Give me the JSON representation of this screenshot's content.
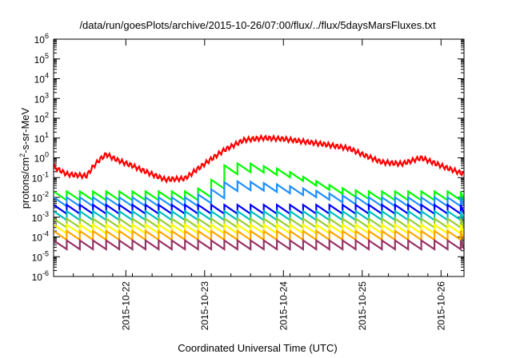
{
  "chart_data": {
    "type": "line",
    "title": "/data/run/goesPlots/archive/2015-10-26/07:00/flux/../flux/5daysMarsFluxes.txt",
    "xlabel": "Coordinated Universal Time (UTC)",
    "ylabel": {
      "main": "protons/cm",
      "sup": "2",
      "rest": "-s-sr-MeV"
    },
    "yscale": "log",
    "ylim_exp": [
      -6,
      6
    ],
    "y_ticks": [
      {
        "base": "10",
        "exp": "-6"
      },
      {
        "base": "10",
        "exp": "-5"
      },
      {
        "base": "10",
        "exp": "-4"
      },
      {
        "base": "10",
        "exp": "-3"
      },
      {
        "base": "10",
        "exp": "-2"
      },
      {
        "base": "10",
        "exp": "-1"
      },
      {
        "base": "10",
        "exp": "0"
      },
      {
        "base": "10",
        "exp": "1"
      },
      {
        "base": "10",
        "exp": "2"
      },
      {
        "base": "10",
        "exp": "3"
      },
      {
        "base": "10",
        "exp": "4"
      },
      {
        "base": "10",
        "exp": "5"
      },
      {
        "base": "10",
        "exp": "6"
      }
    ],
    "xlim": [
      "2015-10-21T02:00",
      "2015-10-26T07:00"
    ],
    "x_ticks": [
      "2015-10-22",
      "2015-10-23",
      "2015-10-24",
      "2015-10-25",
      "2015-10-26"
    ],
    "grid": false,
    "legend": "none",
    "colors": {
      "red": "#ff0000",
      "green": "#00ff00",
      "dodgerblue": "#1e90ff",
      "blue": "#0000ff",
      "cyan": "#00bfbf",
      "yellowgreen": "#9acd32",
      "yellow": "#ffff00",
      "orange": "#ffa500",
      "purple": "#993366"
    },
    "series": [
      {
        "color": "red",
        "x": [
          "2015-10-21T02:00",
          "2015-10-21T06:00",
          "2015-10-21T12:00",
          "2015-10-21T14:00",
          "2015-10-21T16:00",
          "2015-10-21T18:00",
          "2015-10-21T20:00",
          "2015-10-21T22:00",
          "2015-10-22T02:00",
          "2015-10-22T06:00",
          "2015-10-22T12:00",
          "2015-10-22T18:00",
          "2015-10-23T00:00",
          "2015-10-23T06:00",
          "2015-10-23T12:00",
          "2015-10-23T18:00",
          "2015-10-24T00:00",
          "2015-10-24T12:00",
          "2015-10-24T20:00",
          "2015-10-25T00:00",
          "2015-10-25T06:00",
          "2015-10-25T12:00",
          "2015-10-25T18:00",
          "2015-10-26T00:00",
          "2015-10-26T07:00"
        ],
        "y": [
          0.35,
          0.15,
          0.12,
          0.35,
          0.8,
          1.5,
          1.0,
          0.7,
          0.4,
          0.2,
          0.08,
          0.09,
          0.5,
          2.5,
          8,
          10,
          9,
          5,
          3,
          1.5,
          0.6,
          0.5,
          1.0,
          0.4,
          0.15
        ]
      },
      {
        "color": "green",
        "x": [
          "2015-10-21T02:00",
          "2015-10-22T18:00",
          "2015-10-23T00:00",
          "2015-10-23T06:00",
          "2015-10-23T12:00",
          "2015-10-24T00:00",
          "2015-10-24T08:00",
          "2015-10-24T16:00",
          "2015-10-25T00:00",
          "2015-10-26T07:00"
        ],
        "y": [
          0.012,
          0.012,
          0.02,
          0.25,
          0.35,
          0.15,
          0.05,
          0.02,
          0.012,
          0.012
        ]
      },
      {
        "color": "dodgerblue",
        "x": [
          "2015-10-21T02:00",
          "2015-10-22T18:00",
          "2015-10-23T00:00",
          "2015-10-23T06:00",
          "2015-10-23T12:00",
          "2015-10-24T00:00",
          "2015-10-24T08:00",
          "2015-10-24T16:00",
          "2015-10-25T00:00",
          "2015-10-26T07:00"
        ],
        "y": [
          0.006,
          0.006,
          0.01,
          0.035,
          0.04,
          0.025,
          0.015,
          0.008,
          0.006,
          0.006
        ]
      },
      {
        "color": "blue",
        "x": [
          "2015-10-21T02:00",
          "2015-10-26T07:00"
        ],
        "y": [
          0.0025,
          0.0025
        ]
      },
      {
        "color": "cyan",
        "x": [
          "2015-10-21T02:00",
          "2015-10-26T07:00"
        ],
        "y": [
          0.0012,
          0.0012
        ]
      },
      {
        "color": "yellowgreen",
        "x": [
          "2015-10-21T02:00",
          "2015-10-26T07:00"
        ],
        "y": [
          0.0005,
          0.0005
        ]
      },
      {
        "color": "yellow",
        "x": [
          "2015-10-21T02:00",
          "2015-10-26T07:00"
        ],
        "y": [
          0.00025,
          0.00025
        ]
      },
      {
        "color": "orange",
        "x": [
          "2015-10-21T02:00",
          "2015-10-26T07:00"
        ],
        "y": [
          0.00012,
          0.00012
        ]
      },
      {
        "color": "purple",
        "x": [
          "2015-10-21T02:00",
          "2015-10-26T07:00"
        ],
        "y": [
          4e-05,
          4e-05
        ]
      }
    ]
  }
}
